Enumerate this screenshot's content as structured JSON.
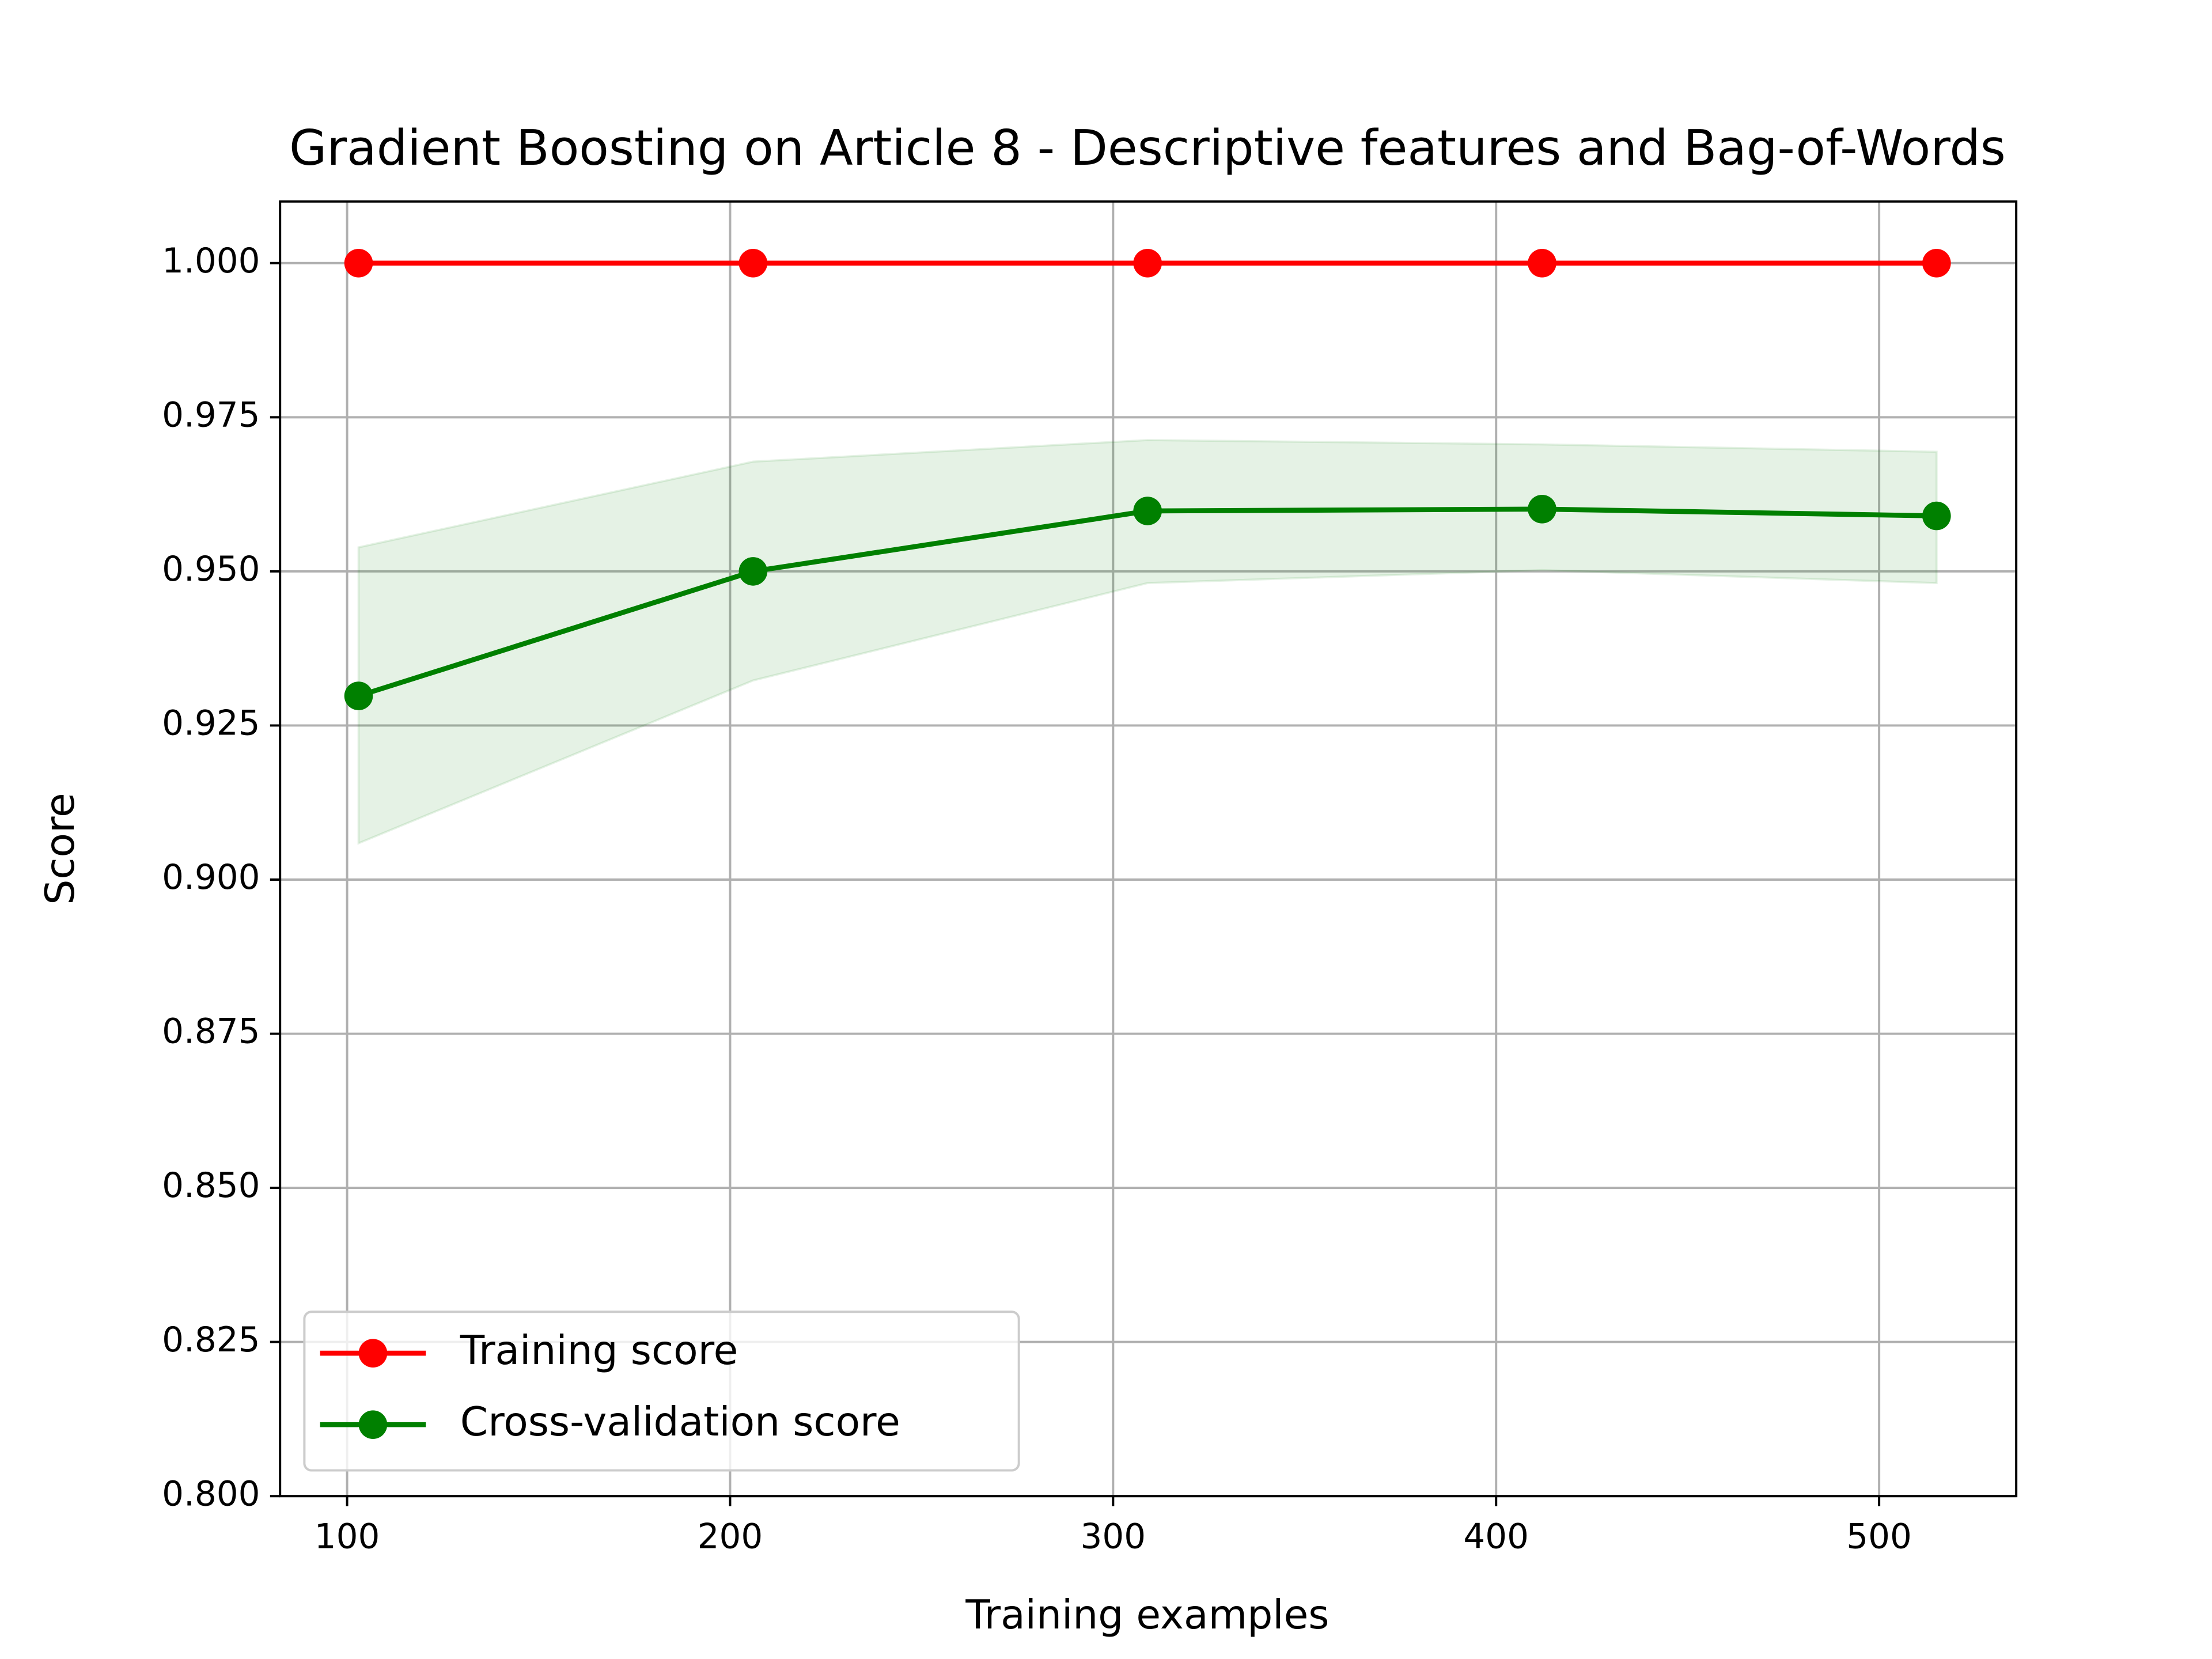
{
  "chart_data": {
    "type": "line",
    "title": "Gradient Boosting on Article 8 - Descriptive features and Bag-of-Words",
    "xlabel": "Training examples",
    "ylabel": "Score",
    "x": [
      103,
      206,
      309,
      412,
      515
    ],
    "series": [
      {
        "name": "Training score",
        "color": "#ff0000",
        "values": [
          1.0,
          1.0,
          1.0,
          1.0,
          1.0
        ]
      },
      {
        "name": "Cross-validation score",
        "color": "#008000",
        "values": [
          0.9298,
          0.95,
          0.9598,
          0.9601,
          0.959
        ],
        "upper": [
          0.9539,
          0.9678,
          0.9713,
          0.9706,
          0.9694
        ],
        "lower": [
          0.9059,
          0.9323,
          0.9481,
          0.9502,
          0.9481
        ]
      }
    ],
    "xlim": [
      82.5,
      535.8
    ],
    "ylim": [
      0.8,
      1.01
    ],
    "xticks": [
      100,
      200,
      300,
      400,
      500
    ],
    "yticks": [
      {
        "value": 0.8,
        "label": "0.800"
      },
      {
        "value": 0.825,
        "label": "0.825"
      },
      {
        "value": 0.85,
        "label": "0.850"
      },
      {
        "value": 0.875,
        "label": "0.875"
      },
      {
        "value": 0.9,
        "label": "0.900"
      },
      {
        "value": 0.925,
        "label": "0.925"
      },
      {
        "value": 0.95,
        "label": "0.950"
      },
      {
        "value": 0.975,
        "label": "0.975"
      },
      {
        "value": 1.0,
        "label": "1.000"
      }
    ],
    "grid": true,
    "legend": "lower left"
  }
}
